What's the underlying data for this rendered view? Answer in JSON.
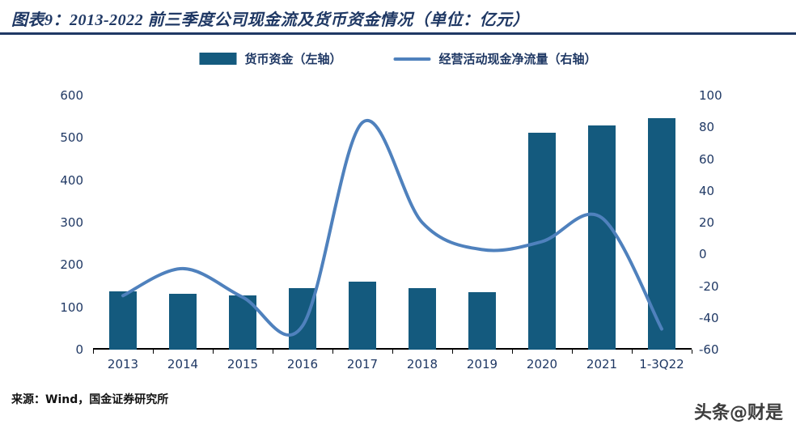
{
  "header": {
    "title": "图表9：2013-2022 前三季度公司现金流及货币资金情况（单位：亿元）"
  },
  "legend": {
    "bar_label": "货币资金（左轴）",
    "line_label": "经营活动现金净流量（右轴）"
  },
  "chart_data": {
    "type": "bar",
    "subtype": "combo-bar-line",
    "categories": [
      "2013",
      "2014",
      "2015",
      "2016",
      "2017",
      "2018",
      "2019",
      "2020",
      "2021",
      "1-3Q22"
    ],
    "series": [
      {
        "name": "货币资金（左轴）",
        "type": "bar",
        "axis": "left",
        "values": [
          138,
          132,
          128,
          146,
          160,
          145,
          135,
          513,
          530,
          547
        ]
      },
      {
        "name": "经营活动现金净流量（右轴）",
        "type": "line",
        "axis": "right",
        "values": [
          -26,
          -9,
          -27,
          -45,
          83,
          20,
          3,
          8,
          23,
          -47
        ]
      }
    ],
    "left_axis": {
      "min": 0,
      "max": 600,
      "ticks": [
        600,
        500,
        400,
        300,
        200,
        100,
        0
      ]
    },
    "right_axis": {
      "min": -60,
      "max": 100,
      "ticks": [
        100,
        80,
        60,
        40,
        20,
        0,
        -20,
        -40,
        -60
      ]
    },
    "title": "图表9：2013-2022 前三季度公司现金流及货币资金情况（单位：亿元）",
    "xlabel": "",
    "ylabel_left": "",
    "ylabel_right": "",
    "grid": false,
    "legend_position": "top-center"
  },
  "colors": {
    "bar": "#145a7e",
    "line": "#4f81bd",
    "title": "#1f3864",
    "axis_text": "#1f3864"
  },
  "footer": {
    "source": "来源：Wind，国金证券研究所",
    "watermark": "头条@财是"
  }
}
